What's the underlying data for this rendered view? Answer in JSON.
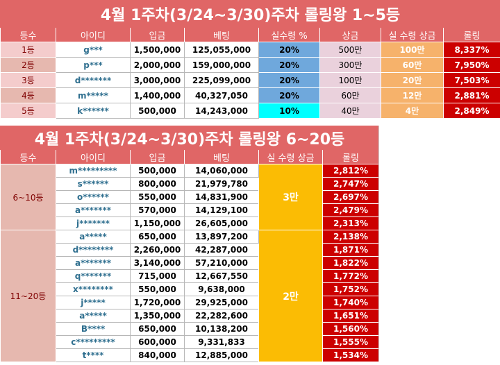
{
  "table1": {
    "title": "4월 1주차(3/24~3/30)주차 롤링왕 1~5등",
    "headers": [
      "등수",
      "아이디",
      "입금",
      "베팅",
      "실수령 %",
      "상금",
      "실 수령 상금",
      "롤링"
    ],
    "rows": [
      {
        "rank": "1등",
        "id": "g***",
        "deposit": "1,500,000",
        "bet": "125,055,000",
        "rate": "20%",
        "prize": "500만",
        "net": "100만",
        "rolling": "8,337%"
      },
      {
        "rank": "2등",
        "id": "p***",
        "deposit": "2,000,000",
        "bet": "159,000,000",
        "rate": "20%",
        "prize": "300만",
        "net": "60만",
        "rolling": "7,950%"
      },
      {
        "rank": "3등",
        "id": "d*******",
        "deposit": "3,000,000",
        "bet": "225,099,000",
        "rate": "20%",
        "prize": "100만",
        "net": "20만",
        "rolling": "7,503%"
      },
      {
        "rank": "4등",
        "id": "m*****",
        "deposit": "1,400,000",
        "bet": "40,327,050",
        "rate": "20%",
        "prize": "60만",
        "net": "12만",
        "rolling": "2,881%"
      },
      {
        "rank": "5등",
        "id": "k******",
        "deposit": "500,000",
        "bet": "14,243,000",
        "rate": "10%",
        "prize": "40만",
        "net": "4만",
        "rolling": "2,849%"
      }
    ]
  },
  "table2": {
    "title": "4월 1주차(3/24~3/30)주차 롤링왕 6~20등",
    "headers": [
      "등수",
      "아이디",
      "입금",
      "베팅",
      "실 수령 상금",
      "롤링"
    ],
    "groups": [
      {
        "rank": "6~10등",
        "net": "3만",
        "rows": [
          {
            "id": "m*********",
            "deposit": "500,000",
            "bet": "14,060,000",
            "rolling": "2,812%"
          },
          {
            "id": "s******",
            "deposit": "800,000",
            "bet": "21,979,780",
            "rolling": "2,747%"
          },
          {
            "id": "o******",
            "deposit": "550,000",
            "bet": "14,831,900",
            "rolling": "2,697%"
          },
          {
            "id": "a*******",
            "deposit": "570,000",
            "bet": "14,129,100",
            "rolling": "2,479%"
          },
          {
            "id": "j*******",
            "deposit": "1,150,000",
            "bet": "26,605,000",
            "rolling": "2,313%"
          }
        ]
      },
      {
        "rank": "11~20등",
        "net": "2만",
        "rows": [
          {
            "id": "a*****",
            "deposit": "650,000",
            "bet": "13,897,200",
            "rolling": "2,138%"
          },
          {
            "id": "d********",
            "deposit": "2,260,000",
            "bet": "42,287,000",
            "rolling": "1,871%"
          },
          {
            "id": "a*******",
            "deposit": "3,140,000",
            "bet": "57,210,000",
            "rolling": "1,822%"
          },
          {
            "id": "q*******",
            "deposit": "715,000",
            "bet": "12,667,550",
            "rolling": "1,772%"
          },
          {
            "id": "x********",
            "deposit": "550,000",
            "bet": "9,638,000",
            "rolling": "1,752%"
          },
          {
            "id": "j*****",
            "deposit": "1,720,000",
            "bet": "29,925,000",
            "rolling": "1,740%"
          },
          {
            "id": "a*****",
            "deposit": "1,350,000",
            "bet": "22,282,600",
            "rolling": "1,651%"
          },
          {
            "id": "B****",
            "deposit": "650,000",
            "bet": "10,138,200",
            "rolling": "1,560%"
          },
          {
            "id": "c*********",
            "deposit": "600,000",
            "bet": "9,331,833",
            "rolling": "1,555%"
          },
          {
            "id": "t****",
            "deposit": "840,000",
            "bet": "12,885,000",
            "rolling": "1,534%"
          }
        ]
      }
    ]
  }
}
